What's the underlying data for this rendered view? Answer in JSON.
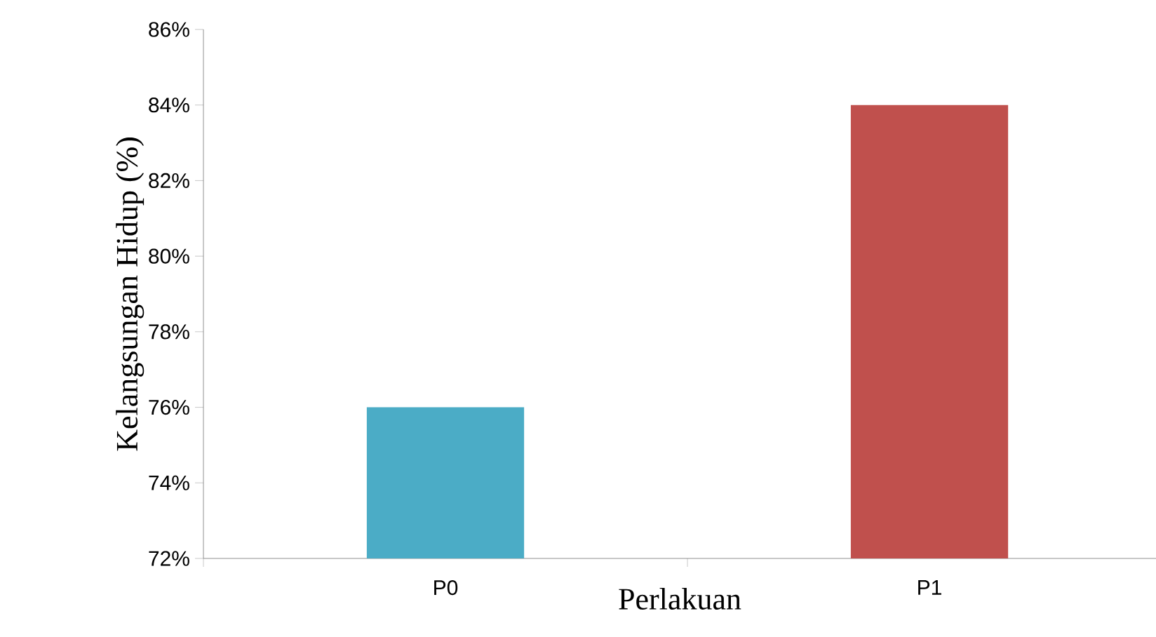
{
  "chart_data": {
    "type": "bar",
    "xlabel": "Perlakuan",
    "ylabel": "Kelangsungan Hidup (%)",
    "categories": [
      "P0",
      "P1"
    ],
    "values": [
      76,
      84
    ],
    "colors": [
      "#4bacc6",
      "#c0504d"
    ],
    "ylim": [
      72,
      86
    ],
    "yticks": [
      {
        "value": 72,
        "label": "72%"
      },
      {
        "value": 74,
        "label": "74%"
      },
      {
        "value": 76,
        "label": "76%"
      },
      {
        "value": 78,
        "label": "78%"
      },
      {
        "value": 80,
        "label": "80%"
      },
      {
        "value": 82,
        "label": "82%"
      },
      {
        "value": 84,
        "label": "84%"
      },
      {
        "value": 86,
        "label": "86%"
      }
    ],
    "grid": false
  }
}
